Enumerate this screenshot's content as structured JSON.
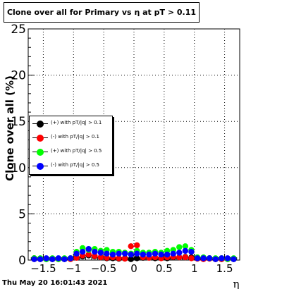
{
  "chart_data": {
    "type": "scatter",
    "title": "Clone  over all for Primary vs   η at pT > 0.11",
    "xlabel": "η",
    "ylabel": "Clone  over all (%)",
    "xlim": [
      -1.75,
      1.75
    ],
    "ylim": [
      0,
      25
    ],
    "xticks": [
      "−1.5",
      "−1",
      "−0.5",
      "0",
      "0.5",
      "1",
      "1.5"
    ],
    "xtick_values": [
      -1.5,
      -1,
      -0.5,
      0,
      0.5,
      1,
      1.5
    ],
    "yticks": [
      "0",
      "5",
      "10",
      "15",
      "20",
      "25"
    ],
    "ytick_values": [
      0,
      5,
      10,
      15,
      20,
      25
    ],
    "grid": true,
    "legend_placement": "middle-left",
    "x": [
      -1.65,
      -1.55,
      -1.45,
      -1.35,
      -1.25,
      -1.15,
      -1.05,
      -0.95,
      -0.85,
      -0.75,
      -0.65,
      -0.55,
      -0.45,
      -0.35,
      -0.25,
      -0.15,
      -0.05,
      0.05,
      0.15,
      0.25,
      0.35,
      0.45,
      0.55,
      0.65,
      0.75,
      0.85,
      0.95,
      1.05,
      1.15,
      1.25,
      1.35,
      1.45,
      1.55,
      1.65
    ],
    "series": [
      {
        "name": "(+) with pT/|q| > 0.1",
        "color": "#000000",
        "values": [
          0.2,
          0.15,
          0.1,
          0.1,
          0.15,
          0.1,
          0.15,
          0.3,
          0.4,
          0.5,
          0.4,
          0.3,
          0.2,
          0.2,
          0.15,
          0.2,
          0.1,
          0.2,
          0.25,
          0.3,
          0.2,
          0.25,
          0.2,
          0.3,
          0.3,
          0.35,
          0.3,
          0.2,
          0.15,
          0.2,
          0.1,
          0.1,
          0.15,
          0.1
        ]
      },
      {
        "name": "(-) with pT/|q| > 0.1",
        "color": "#ff0000",
        "values": [
          0.1,
          0.1,
          0.15,
          0.1,
          0.1,
          0.15,
          0.1,
          0.25,
          0.5,
          0.6,
          0.45,
          0.3,
          0.25,
          0.3,
          0.2,
          0.15,
          1.5,
          1.6,
          0.3,
          0.25,
          0.3,
          0.2,
          0.3,
          0.35,
          0.3,
          0.3,
          0.2,
          0.15,
          0.1,
          0.15,
          0.1,
          0.1,
          0.1,
          0.15
        ]
      },
      {
        "name": "(+) with pT/|q| > 0.5",
        "color": "#00ff00",
        "values": [
          0.2,
          0.2,
          0.1,
          0.2,
          0.1,
          0.2,
          0.2,
          0.9,
          1.3,
          1.1,
          1.2,
          1.0,
          1.1,
          0.9,
          0.9,
          0.8,
          0.7,
          1.0,
          0.8,
          0.8,
          0.9,
          0.8,
          1.0,
          1.1,
          1.4,
          1.5,
          1.1,
          0.3,
          0.3,
          0.2,
          0.2,
          0.2,
          0.1,
          0.2
        ]
      },
      {
        "name": "(-) with pT/|q| > 0.5",
        "color": "#0000ff",
        "values": [
          0.1,
          0.1,
          0.2,
          0.1,
          0.2,
          0.1,
          0.2,
          0.7,
          0.9,
          1.2,
          0.9,
          0.8,
          0.7,
          0.6,
          0.7,
          0.7,
          0.6,
          0.7,
          0.6,
          0.6,
          0.7,
          0.6,
          0.6,
          0.7,
          0.8,
          1.0,
          0.9,
          0.2,
          0.2,
          0.2,
          0.1,
          0.2,
          0.2,
          0.1
        ]
      }
    ],
    "footer": "Thu May 20 16:01:43 2021"
  }
}
